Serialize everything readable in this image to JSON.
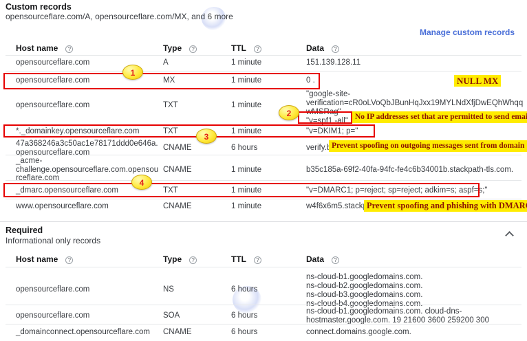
{
  "columns": {
    "host": "Host name",
    "type": "Type",
    "ttl": "TTL",
    "data": "Data"
  },
  "icons": {
    "help": "?"
  },
  "custom": {
    "title": "Custom records",
    "subtitle": "opensourceflare.com/A, opensourceflare.com/MX, and 6 more",
    "manage_link": "Manage custom records",
    "rows": [
      {
        "host": "opensourceflare.com",
        "type": "A",
        "ttl": "1 minute",
        "data": [
          "151.139.128.11"
        ]
      },
      {
        "host": "opensourceflare.com",
        "type": "MX",
        "ttl": "1 minute",
        "data": [
          "0 ."
        ]
      },
      {
        "host": "opensourceflare.com",
        "type": "TXT",
        "ttl": "1 minute",
        "data": [
          "\"google-site-verification=cR0oLVoQbJBunHqJxx19MYLNdXfjDwEQhWhqqwMSRag\"",
          "\"v=spf1 -all\""
        ]
      },
      {
        "host": "*._domainkey.opensourceflare.com",
        "type": "TXT",
        "ttl": "1 minute",
        "data": [
          "\"v=DKIM1; p=\""
        ]
      },
      {
        "host": "47a368246a3c50ac1e78171ddd0e646a.opensourceflare.com",
        "type": "CNAME",
        "ttl": "6 hours",
        "data": [
          "verify.b"
        ]
      },
      {
        "host": "_acme-challenge.opensourceflare.com.opensourceflare.com",
        "type": "CNAME",
        "ttl": "1 minute",
        "data": [
          "b35c185a-69f2-40fa-94fc-fe4c6b34001b.stackpath-tls.com."
        ]
      },
      {
        "host": "_dmarc.opensourceflare.com",
        "type": "TXT",
        "ttl": "1 minute",
        "data": [
          "\"v=DMARC1; p=reject; sp=reject; adkim=s; aspf=s;\""
        ]
      },
      {
        "host": "www.opensourceflare.com",
        "type": "CNAME",
        "ttl": "1 minute",
        "data": [
          "w4f6x6m5.stackp"
        ]
      }
    ]
  },
  "required": {
    "title": "Required",
    "subtitle": "Informational only records",
    "rows": [
      {
        "host": "opensourceflare.com",
        "type": "NS",
        "ttl": "6 hours",
        "data": [
          "ns-cloud-b1.googledomains.com.",
          "ns-cloud-b2.googledomains.com.",
          "ns-cloud-b3.googledomains.com.",
          "ns-cloud-b4.googledomains.com."
        ]
      },
      {
        "host": "opensourceflare.com",
        "type": "SOA",
        "ttl": "6 hours",
        "data": [
          "ns-cloud-b1.googledomains.com. cloud-dns-hostmaster.google.com. 19 21600 3600 259200 300"
        ]
      },
      {
        "host": "_domainconnect.opensourceflare.com",
        "type": "CNAME",
        "ttl": "6 hours",
        "data": [
          "connect.domains.google.com."
        ]
      }
    ]
  },
  "annotations": {
    "callout_numbers": [
      "1",
      "2",
      "3",
      "4"
    ],
    "notes": {
      "null_mx": "NULL MX",
      "spf": "No IP addresses set that are permitted to send email",
      "dkim": "Prevent spoofing on outgoing messages sent from domain",
      "dmarc": "Prevent spoofing and phishing with DMARC"
    },
    "colors": {
      "box_red": "#e60000",
      "highlight_yellow": "#ffec00",
      "note_text": "#8b1303",
      "link_blue": "#4a6fd8"
    }
  }
}
